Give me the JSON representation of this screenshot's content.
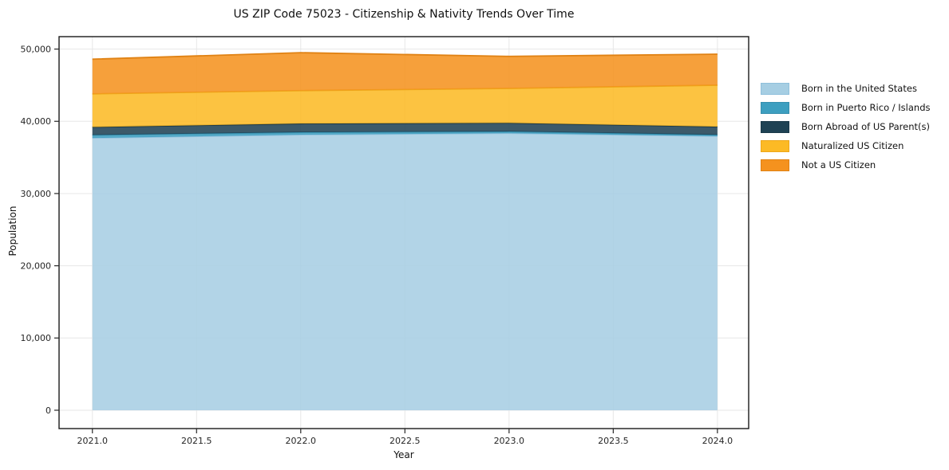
{
  "figure": {
    "background": "#ffffff"
  },
  "chart_data": {
    "type": "area",
    "stacked": true,
    "title": "US ZIP Code 75023 - Citizenship & Nativity Trends Over Time",
    "xlabel": "Year",
    "ylabel": "Population",
    "x": [
      2021,
      2022,
      2023,
      2024
    ],
    "series": [
      {
        "name": "Born in the United States",
        "color": "#a6cee3",
        "edge": "#8fc0dc",
        "values": [
          37700,
          38150,
          38350,
          37950
        ]
      },
      {
        "name": "Born in Puerto Rico / Islands",
        "color": "#3d9fc0",
        "edge": "#368fae",
        "values": [
          400,
          330,
          240,
          180
        ]
      },
      {
        "name": "Born Abroad of US Parent(s)",
        "color": "#1f4254",
        "edge": "#1a3848",
        "values": [
          1100,
          1200,
          1180,
          1120
        ]
      },
      {
        "name": "Naturalized US Citizen",
        "color": "#fcba25",
        "edge": "#eda71a",
        "values": [
          4600,
          4570,
          4780,
          5750
        ]
      },
      {
        "name": "Not a US Citizen",
        "color": "#f5921e",
        "edge": "#e08214",
        "values": [
          4800,
          5250,
          4440,
          4290
        ]
      }
    ],
    "stack_totals": [
      48600,
      49500,
      48990,
      49290
    ],
    "x_ticks": [
      2021.0,
      2021.5,
      2022.0,
      2022.5,
      2023.0,
      2023.5,
      2024.0
    ],
    "x_tick_labels": [
      "2021.0",
      "2021.5",
      "2022.0",
      "2022.5",
      "2023.0",
      "2023.5",
      "2024.0"
    ],
    "y_ticks": [
      0,
      10000,
      20000,
      30000,
      40000,
      50000
    ],
    "y_tick_labels": [
      "0",
      "10,000",
      "20,000",
      "30,000",
      "40,000",
      "50,000"
    ],
    "xlim": [
      2020.84,
      2024.15
    ],
    "ylim": [
      -2540,
      51720
    ],
    "grid": true,
    "grid_color": "#e7e7e7",
    "spine_color": "#1a1a1a",
    "tick_color": "#262626",
    "fill_opacity": 0.87,
    "legend_position": "outside-right"
  }
}
